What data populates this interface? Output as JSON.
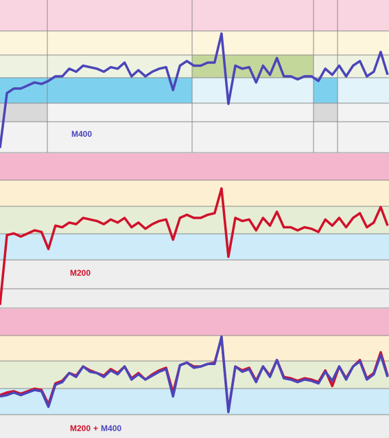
{
  "chart_data": [
    {
      "type": "line",
      "label": "M400",
      "ylim": [
        0,
        100
      ],
      "series": [
        {
          "name": "M400",
          "color": "#4b45b9",
          "values": [
            3,
            39,
            42,
            42,
            44,
            46,
            45,
            47,
            50,
            50,
            55,
            53,
            57,
            56,
            55,
            53,
            56,
            55,
            59,
            50,
            54,
            50,
            53,
            55,
            56,
            41,
            57,
            60,
            57,
            57,
            59,
            59,
            78,
            32,
            57,
            55,
            56,
            46,
            57,
            51,
            62,
            50,
            50,
            48,
            50,
            50,
            47,
            55,
            51,
            57,
            50,
            57,
            60,
            50,
            53,
            66,
            51
          ]
        }
      ]
    },
    {
      "type": "line",
      "label": "M200",
      "ylim": [
        0,
        100
      ],
      "series": [
        {
          "name": "M200",
          "color": "#d0112b",
          "values": [
            2,
            47,
            48,
            46,
            48,
            50,
            49,
            38,
            53,
            52,
            55,
            54,
            58,
            57,
            56,
            54,
            57,
            55,
            58,
            52,
            55,
            51,
            54,
            56,
            57,
            44,
            58,
            60,
            58,
            58,
            60,
            61,
            77,
            33,
            58,
            56,
            57,
            50,
            58,
            53,
            62,
            52,
            52,
            50,
            52,
            51,
            49,
            57,
            53,
            58,
            52,
            58,
            61,
            52,
            55,
            65,
            53
          ]
        }
      ]
    },
    {
      "type": "line",
      "label_joiner": "+",
      "ylim": [
        0,
        100
      ],
      "series": [
        {
          "name": "M200",
          "color": "#d0112b",
          "values": [
            33,
            35,
            36,
            34,
            36,
            38,
            37,
            26,
            42,
            44,
            50,
            48,
            55,
            52,
            50,
            48,
            53,
            50,
            55,
            46,
            50,
            45,
            49,
            52,
            54,
            35,
            56,
            58,
            55,
            55,
            57,
            58,
            77,
            21,
            55,
            52,
            54,
            44,
            55,
            48,
            60,
            47,
            46,
            44,
            46,
            45,
            43,
            52,
            40,
            55,
            46,
            55,
            60,
            46,
            50,
            66,
            48
          ]
        },
        {
          "name": "M400",
          "color": "#4b45b9",
          "values": [
            32,
            33,
            35,
            33,
            35,
            37,
            36,
            24,
            41,
            43,
            50,
            47,
            55,
            51,
            50,
            47,
            52,
            49,
            55,
            45,
            49,
            45,
            48,
            51,
            53,
            32,
            56,
            58,
            54,
            55,
            57,
            57,
            78,
            20,
            55,
            51,
            53,
            43,
            55,
            47,
            60,
            46,
            45,
            43,
            45,
            44,
            42,
            51,
            44,
            55,
            45,
            55,
            59,
            45,
            49,
            64,
            47
          ]
        }
      ]
    }
  ]
}
